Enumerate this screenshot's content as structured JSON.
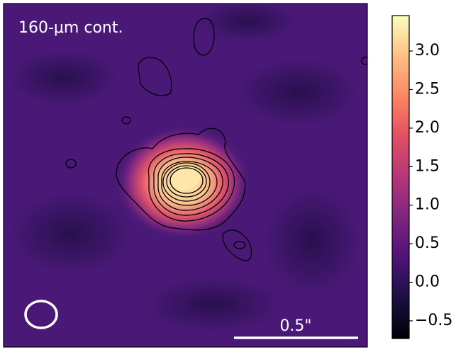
{
  "chart_data": {
    "type": "image",
    "title": "160-μm cont.",
    "scale_bar_label": "0.5\"",
    "colormap": "magma",
    "clim": [
      -0.73,
      3.46
    ],
    "cticks": [
      {
        "value": -0.5,
        "label": "−0.5"
      },
      {
        "value": 0,
        "label": "0.0"
      },
      {
        "value": 0.5,
        "label": "0.5"
      },
      {
        "value": 1,
        "label": "1.0"
      },
      {
        "value": 1.5,
        "label": "1.5"
      },
      {
        "value": 2,
        "label": "2.0"
      },
      {
        "value": 2.5,
        "label": "2.5"
      },
      {
        "value": 3,
        "label": "3.0"
      }
    ]
  }
}
